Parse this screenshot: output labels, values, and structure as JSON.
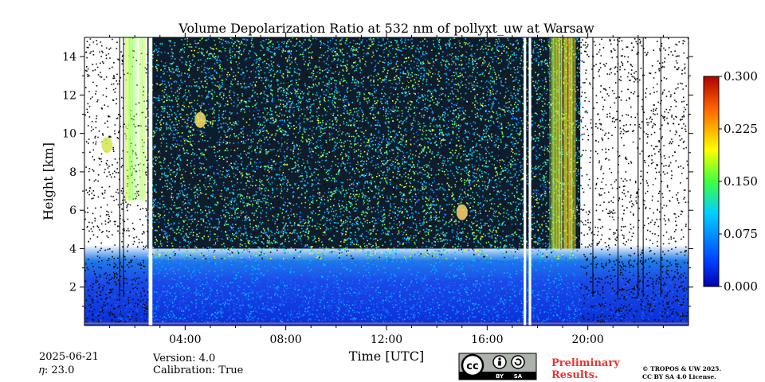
{
  "chart_data": {
    "type": "heatmap",
    "title": "Volume Depolarization Ratio at 532 nm of pollyxt_uw at Warsaw",
    "xlabel": "Time [UTC]",
    "ylabel": "Height [km]",
    "xlim": [
      0,
      24
    ],
    "ylim": [
      0,
      15
    ],
    "x_ticks": [
      4,
      8,
      12,
      16,
      20
    ],
    "x_tick_labels": [
      "04:00",
      "08:00",
      "12:00",
      "16:00",
      "20:00"
    ],
    "y_ticks": [
      2,
      4,
      6,
      8,
      10,
      12,
      14
    ],
    "y_tick_labels": [
      "2",
      "4",
      "6",
      "8",
      "10",
      "12",
      "14"
    ],
    "colorbar": {
      "min": 0.0,
      "max": 0.3,
      "ticks": [
        0.0,
        0.075,
        0.15,
        0.225,
        0.3
      ],
      "tick_labels": [
        "0.000",
        "0.075",
        "0.150",
        "0.225",
        "0.300"
      ],
      "colormap": "jet"
    },
    "gaps_utc": [
      [
        2.55,
        2.7
      ],
      [
        17.45,
        17.55
      ],
      [
        17.65,
        17.75
      ]
    ],
    "low_signal_periods_utc": [
      [
        0,
        2.5
      ],
      [
        19.7,
        24
      ]
    ]
  },
  "footer": {
    "date": "2025-06-21",
    "eta": "𝜂: 23.0",
    "version": "Version: 4.0",
    "calibration": "Calibration: True",
    "preliminary_line1": "Preliminary",
    "preliminary_line2": "Results.",
    "copyright_line1": "© TROPOS & UW 2025.",
    "copyright_line2": "CC BY SA 4.0 License.",
    "license_badge": {
      "cc": "cc",
      "by": "BY",
      "sa": "SA"
    }
  }
}
